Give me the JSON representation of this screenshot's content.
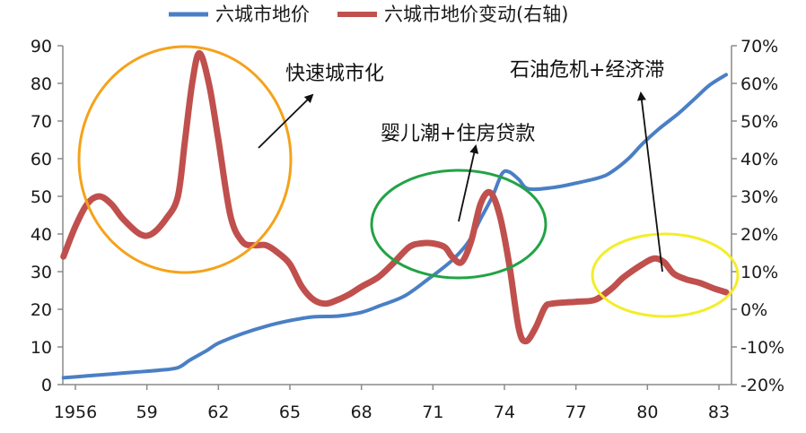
{
  "chart_data": {
    "type": "line",
    "title": "",
    "xlabel": "",
    "ylabel": "",
    "x_range": [
      1956,
      1983
    ],
    "x_tick_labels": [
      "1956",
      "59",
      "62",
      "65",
      "68",
      "71",
      "74",
      "77",
      "80",
      "83"
    ],
    "x_tick_values": [
      1956,
      1959,
      1962,
      1965,
      1968,
      1971,
      1974,
      1977,
      1980,
      1983
    ],
    "y_left": {
      "min": 0,
      "max": 90,
      "ticks": [
        "0",
        "10",
        "20",
        "30",
        "40",
        "50",
        "60",
        "70",
        "80",
        "90"
      ]
    },
    "y_right": {
      "min": -20,
      "max": 70,
      "ticks": [
        "-20%",
        "-10%",
        "0%",
        "10%",
        "20%",
        "30%",
        "40%",
        "50%",
        "60%",
        "70%"
      ]
    },
    "grid": false,
    "legend_position": "top",
    "series": [
      {
        "name": "六城市地价",
        "axis": "left",
        "color": "#4a7fc5",
        "points": [
          [
            1955.5,
            1.8
          ],
          [
            1956.5,
            2.3
          ],
          [
            1957.5,
            2.8
          ],
          [
            1958.5,
            3.3
          ],
          [
            1959.5,
            3.8
          ],
          [
            1960.3,
            4.5
          ],
          [
            1960.8,
            6.5
          ],
          [
            1961.5,
            9.0
          ],
          [
            1962.0,
            11.0
          ],
          [
            1963.0,
            13.5
          ],
          [
            1964.0,
            15.5
          ],
          [
            1965.0,
            17.0
          ],
          [
            1966.0,
            18.0
          ],
          [
            1967.0,
            18.2
          ],
          [
            1968.0,
            19.2
          ],
          [
            1968.8,
            21.0
          ],
          [
            1969.8,
            23.5
          ],
          [
            1970.8,
            28.0
          ],
          [
            1971.8,
            33.0
          ],
          [
            1972.5,
            38.0
          ],
          [
            1973.0,
            44.0
          ],
          [
            1973.5,
            50.0
          ],
          [
            1973.9,
            56.0
          ],
          [
            1974.2,
            56.5
          ],
          [
            1974.6,
            54.5
          ],
          [
            1975.0,
            52.0
          ],
          [
            1976.0,
            52.3
          ],
          [
            1977.0,
            53.5
          ],
          [
            1978.0,
            55.0
          ],
          [
            1978.5,
            56.5
          ],
          [
            1979.2,
            60.0
          ],
          [
            1979.8,
            64.0
          ],
          [
            1980.5,
            68.0
          ],
          [
            1981.3,
            72.0
          ],
          [
            1982.0,
            76.0
          ],
          [
            1982.6,
            79.5
          ],
          [
            1983.3,
            82.3
          ]
        ]
      },
      {
        "name": "六城市地价变动(右轴)",
        "axis": "right",
        "color": "#c0504d",
        "points": [
          [
            1955.5,
            14
          ],
          [
            1956.0,
            22
          ],
          [
            1956.5,
            28
          ],
          [
            1957.0,
            30
          ],
          [
            1957.5,
            28
          ],
          [
            1958.0,
            24
          ],
          [
            1958.7,
            20
          ],
          [
            1959.2,
            20
          ],
          [
            1959.8,
            24
          ],
          [
            1960.3,
            30
          ],
          [
            1960.6,
            45
          ],
          [
            1960.9,
            60
          ],
          [
            1961.2,
            68
          ],
          [
            1961.6,
            60
          ],
          [
            1962.0,
            45
          ],
          [
            1962.5,
            25
          ],
          [
            1963.0,
            18
          ],
          [
            1963.5,
            17
          ],
          [
            1964.0,
            17
          ],
          [
            1964.5,
            15
          ],
          [
            1965.0,
            12
          ],
          [
            1965.5,
            6
          ],
          [
            1966.0,
            2.5
          ],
          [
            1966.5,
            1.5
          ],
          [
            1967.0,
            2.5
          ],
          [
            1967.5,
            4
          ],
          [
            1968.0,
            6
          ],
          [
            1968.7,
            8.5
          ],
          [
            1969.3,
            12
          ],
          [
            1970.0,
            16.5
          ],
          [
            1970.5,
            17.5
          ],
          [
            1971.0,
            17.5
          ],
          [
            1971.5,
            16.5
          ],
          [
            1971.8,
            14
          ],
          [
            1972.2,
            12.5
          ],
          [
            1972.6,
            18
          ],
          [
            1973.0,
            28
          ],
          [
            1973.4,
            31
          ],
          [
            1973.8,
            25
          ],
          [
            1974.2,
            12
          ],
          [
            1974.6,
            -5
          ],
          [
            1974.9,
            -8.5
          ],
          [
            1975.3,
            -5
          ],
          [
            1975.7,
            0.5
          ],
          [
            1976.0,
            1.5
          ],
          [
            1977.0,
            2
          ],
          [
            1977.8,
            2.5
          ],
          [
            1978.5,
            5.5
          ],
          [
            1979.0,
            8.5
          ],
          [
            1979.8,
            12
          ],
          [
            1980.3,
            13.5
          ],
          [
            1980.7,
            12.5
          ],
          [
            1981.1,
            9.5
          ],
          [
            1981.6,
            8
          ],
          [
            1982.2,
            7
          ],
          [
            1982.8,
            5.5
          ],
          [
            1983.3,
            4.5
          ]
        ]
      }
    ],
    "annotations": [
      {
        "text": "快速城市化",
        "circle_color": "#f5a21a"
      },
      {
        "text": "婴儿潮+住房贷款",
        "circle_color": "#22a345"
      },
      {
        "text": "石油危机+经济滞",
        "circle_color": "#f2ee2a"
      }
    ]
  }
}
